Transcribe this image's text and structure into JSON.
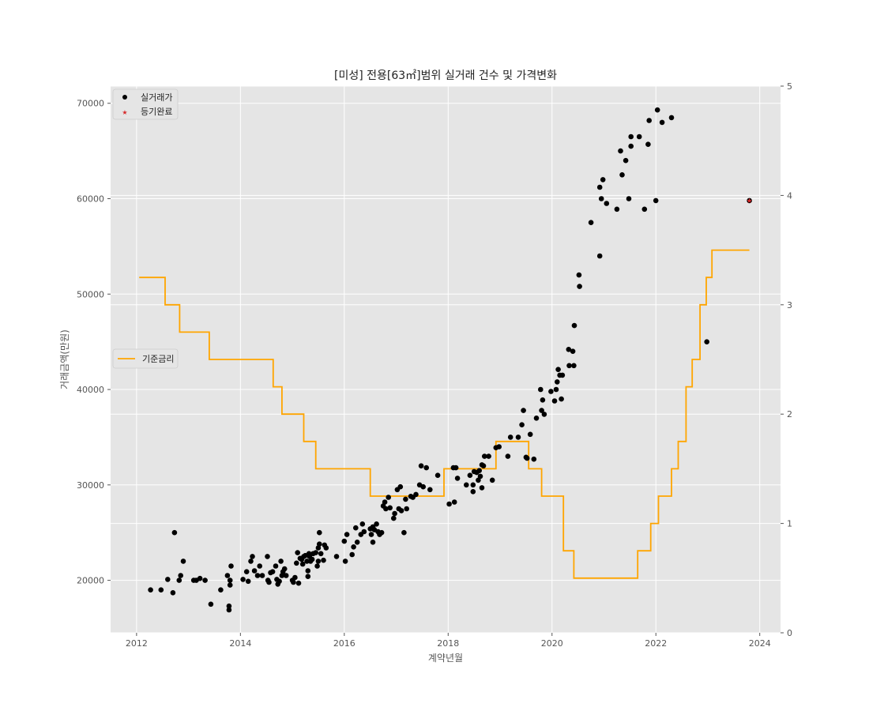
{
  "chart_data": {
    "type": "scatter",
    "title": "[미성] 전용[63㎡]범위 실거래 건수 및 가격변화",
    "xlabel": "계약년월",
    "ylabel": "거래금액(만원)",
    "xlim": [
      2011.5,
      2024.4
    ],
    "ylim": [
      14500,
      71800
    ],
    "y2lim": [
      0,
      5
    ],
    "x_ticks": [
      "2012",
      "2014",
      "2016",
      "2018",
      "2020",
      "2022",
      "2024"
    ],
    "y_ticks": [
      "20000",
      "30000",
      "40000",
      "50000",
      "60000",
      "70000"
    ],
    "y2_ticks": [
      "0",
      "1",
      "2",
      "3",
      "4",
      "5"
    ],
    "grid": true,
    "legends": {
      "scatter_position": "upper-left",
      "line_position": "center-left"
    },
    "series": [
      {
        "name": "실거래가",
        "kind": "scatter",
        "marker": "circle",
        "color": "#000000",
        "points": [
          [
            2012.27,
            19000
          ],
          [
            2012.47,
            19000
          ],
          [
            2012.6,
            20100
          ],
          [
            2012.7,
            18700
          ],
          [
            2012.73,
            25000
          ],
          [
            2012.82,
            20000
          ],
          [
            2012.85,
            20500
          ],
          [
            2012.9,
            22000
          ],
          [
            2013.1,
            20000
          ],
          [
            2013.15,
            20000
          ],
          [
            2013.22,
            20200
          ],
          [
            2013.32,
            20000
          ],
          [
            2013.43,
            17500
          ],
          [
            2013.62,
            19000
          ],
          [
            2013.75,
            20500
          ],
          [
            2013.78,
            17300
          ],
          [
            2013.78,
            16900
          ],
          [
            2013.8,
            20000
          ],
          [
            2013.8,
            19500
          ],
          [
            2013.82,
            21500
          ],
          [
            2014.05,
            20100
          ],
          [
            2014.12,
            20900
          ],
          [
            2014.15,
            19900
          ],
          [
            2014.2,
            22000
          ],
          [
            2014.23,
            22500
          ],
          [
            2014.27,
            21000
          ],
          [
            2014.33,
            20500
          ],
          [
            2014.37,
            21500
          ],
          [
            2014.42,
            20500
          ],
          [
            2014.52,
            22500
          ],
          [
            2014.53,
            20000
          ],
          [
            2014.55,
            19800
          ],
          [
            2014.58,
            20800
          ],
          [
            2014.62,
            20900
          ],
          [
            2014.68,
            21500
          ],
          [
            2014.7,
            20100
          ],
          [
            2014.72,
            19600
          ],
          [
            2014.75,
            19900
          ],
          [
            2014.78,
            22000
          ],
          [
            2014.8,
            20500
          ],
          [
            2014.82,
            20900
          ],
          [
            2014.85,
            21200
          ],
          [
            2014.88,
            20500
          ],
          [
            2015.0,
            20000
          ],
          [
            2015.02,
            19800
          ],
          [
            2015.05,
            20300
          ],
          [
            2015.08,
            21800
          ],
          [
            2015.1,
            22900
          ],
          [
            2015.12,
            19700
          ],
          [
            2015.15,
            22300
          ],
          [
            2015.18,
            22200
          ],
          [
            2015.2,
            21700
          ],
          [
            2015.22,
            22500
          ],
          [
            2015.25,
            22600
          ],
          [
            2015.28,
            22000
          ],
          [
            2015.3,
            21000
          ],
          [
            2015.3,
            20400
          ],
          [
            2015.32,
            22800
          ],
          [
            2015.33,
            22500
          ],
          [
            2015.35,
            22000
          ],
          [
            2015.38,
            22200
          ],
          [
            2015.4,
            22800
          ],
          [
            2015.45,
            22900
          ],
          [
            2015.48,
            21500
          ],
          [
            2015.5,
            22000
          ],
          [
            2015.5,
            23400
          ],
          [
            2015.52,
            23800
          ],
          [
            2015.52,
            25000
          ],
          [
            2015.55,
            22800
          ],
          [
            2015.6,
            22100
          ],
          [
            2015.62,
            23700
          ],
          [
            2015.65,
            23400
          ],
          [
            2015.85,
            22500
          ],
          [
            2016.0,
            24100
          ],
          [
            2016.02,
            22000
          ],
          [
            2016.05,
            24800
          ],
          [
            2016.15,
            22700
          ],
          [
            2016.18,
            23500
          ],
          [
            2016.22,
            25500
          ],
          [
            2016.25,
            24000
          ],
          [
            2016.32,
            24800
          ],
          [
            2016.35,
            25900
          ],
          [
            2016.38,
            25100
          ],
          [
            2016.5,
            25400
          ],
          [
            2016.52,
            24800
          ],
          [
            2016.55,
            25600
          ],
          [
            2016.55,
            24000
          ],
          [
            2016.58,
            25300
          ],
          [
            2016.62,
            25900
          ],
          [
            2016.65,
            25100
          ],
          [
            2016.68,
            24800
          ],
          [
            2016.72,
            25000
          ],
          [
            2016.75,
            27800
          ],
          [
            2016.78,
            28200
          ],
          [
            2016.8,
            27500
          ],
          [
            2016.85,
            28700
          ],
          [
            2016.88,
            27600
          ],
          [
            2016.95,
            26500
          ],
          [
            2016.97,
            27000
          ],
          [
            2017.02,
            29500
          ],
          [
            2017.05,
            27500
          ],
          [
            2017.08,
            29800
          ],
          [
            2017.1,
            27300
          ],
          [
            2017.15,
            25000
          ],
          [
            2017.18,
            28500
          ],
          [
            2017.2,
            27500
          ],
          [
            2017.28,
            28800
          ],
          [
            2017.32,
            28700
          ],
          [
            2017.38,
            29000
          ],
          [
            2017.45,
            30000
          ],
          [
            2017.48,
            32000
          ],
          [
            2017.52,
            29800
          ],
          [
            2017.58,
            31800
          ],
          [
            2017.65,
            29500
          ],
          [
            2017.8,
            31000
          ],
          [
            2018.02,
            28000
          ],
          [
            2018.1,
            31800
          ],
          [
            2018.12,
            28200
          ],
          [
            2018.15,
            31800
          ],
          [
            2018.18,
            30700
          ],
          [
            2018.35,
            30000
          ],
          [
            2018.42,
            31000
          ],
          [
            2018.48,
            29300
          ],
          [
            2018.48,
            30000
          ],
          [
            2018.5,
            31400
          ],
          [
            2018.55,
            31300
          ],
          [
            2018.58,
            30500
          ],
          [
            2018.6,
            31500
          ],
          [
            2018.62,
            30900
          ],
          [
            2018.65,
            29700
          ],
          [
            2018.65,
            32100
          ],
          [
            2018.68,
            32000
          ],
          [
            2018.7,
            33000
          ],
          [
            2018.78,
            33000
          ],
          [
            2018.85,
            30500
          ],
          [
            2018.92,
            33900
          ],
          [
            2018.98,
            34000
          ],
          [
            2019.15,
            33000
          ],
          [
            2019.2,
            35000
          ],
          [
            2019.35,
            35000
          ],
          [
            2019.42,
            36300
          ],
          [
            2019.45,
            37800
          ],
          [
            2019.5,
            32900
          ],
          [
            2019.52,
            32800
          ],
          [
            2019.58,
            35300
          ],
          [
            2019.65,
            32700
          ],
          [
            2019.7,
            37000
          ],
          [
            2019.78,
            40000
          ],
          [
            2019.8,
            37800
          ],
          [
            2019.82,
            38900
          ],
          [
            2019.85,
            37400
          ],
          [
            2019.98,
            39800
          ],
          [
            2020.05,
            38800
          ],
          [
            2020.08,
            40000
          ],
          [
            2020.1,
            40800
          ],
          [
            2020.12,
            42100
          ],
          [
            2020.15,
            41500
          ],
          [
            2020.18,
            39000
          ],
          [
            2020.2,
            41500
          ],
          [
            2020.32,
            44200
          ],
          [
            2020.33,
            42500
          ],
          [
            2020.4,
            44000
          ],
          [
            2020.42,
            42500
          ],
          [
            2020.43,
            46700
          ],
          [
            2020.52,
            52000
          ],
          [
            2020.53,
            50800
          ],
          [
            2020.75,
            57500
          ],
          [
            2020.92,
            54000
          ],
          [
            2020.92,
            61200
          ],
          [
            2020.95,
            60000
          ],
          [
            2020.98,
            62000
          ],
          [
            2021.05,
            59500
          ],
          [
            2021.25,
            58900
          ],
          [
            2021.32,
            65000
          ],
          [
            2021.35,
            62500
          ],
          [
            2021.42,
            64000
          ],
          [
            2021.48,
            60000
          ],
          [
            2021.52,
            66500
          ],
          [
            2021.52,
            65500
          ],
          [
            2021.68,
            66500
          ],
          [
            2021.78,
            58900
          ],
          [
            2021.85,
            65700
          ],
          [
            2021.87,
            68200
          ],
          [
            2022.0,
            59800
          ],
          [
            2022.03,
            69300
          ],
          [
            2022.12,
            68000
          ],
          [
            2022.3,
            68500
          ],
          [
            2022.98,
            45000
          ],
          [
            2023.8,
            59800
          ]
        ]
      },
      {
        "name": "등기완료",
        "kind": "scatter",
        "marker": "star",
        "color": "#d62728",
        "points": [
          [
            2023.8,
            59800
          ]
        ]
      },
      {
        "name": "기준금리",
        "kind": "step",
        "axis": "right",
        "color": "#ffa500",
        "points": [
          [
            2012.05,
            3.25
          ],
          [
            2012.55,
            3.25
          ],
          [
            2012.55,
            3.0
          ],
          [
            2012.83,
            3.0
          ],
          [
            2012.83,
            2.75
          ],
          [
            2013.4,
            2.75
          ],
          [
            2013.4,
            2.5
          ],
          [
            2014.63,
            2.5
          ],
          [
            2014.63,
            2.25
          ],
          [
            2014.8,
            2.25
          ],
          [
            2014.8,
            2.0
          ],
          [
            2015.22,
            2.0
          ],
          [
            2015.22,
            1.75
          ],
          [
            2015.45,
            1.75
          ],
          [
            2015.45,
            1.5
          ],
          [
            2016.5,
            1.5
          ],
          [
            2016.5,
            1.25
          ],
          [
            2017.92,
            1.25
          ],
          [
            2017.92,
            1.5
          ],
          [
            2018.92,
            1.5
          ],
          [
            2018.92,
            1.75
          ],
          [
            2019.55,
            1.75
          ],
          [
            2019.55,
            1.5
          ],
          [
            2019.8,
            1.5
          ],
          [
            2019.8,
            1.25
          ],
          [
            2020.22,
            1.25
          ],
          [
            2020.22,
            0.75
          ],
          [
            2020.42,
            0.75
          ],
          [
            2020.42,
            0.5
          ],
          [
            2021.65,
            0.5
          ],
          [
            2021.65,
            0.75
          ],
          [
            2021.9,
            0.75
          ],
          [
            2021.9,
            1.0
          ],
          [
            2022.05,
            1.0
          ],
          [
            2022.05,
            1.25
          ],
          [
            2022.3,
            1.25
          ],
          [
            2022.3,
            1.5
          ],
          [
            2022.43,
            1.5
          ],
          [
            2022.43,
            1.75
          ],
          [
            2022.58,
            1.75
          ],
          [
            2022.58,
            2.25
          ],
          [
            2022.7,
            2.25
          ],
          [
            2022.7,
            2.5
          ],
          [
            2022.85,
            2.5
          ],
          [
            2022.85,
            3.0
          ],
          [
            2022.97,
            3.0
          ],
          [
            2022.97,
            3.25
          ],
          [
            2023.08,
            3.25
          ],
          [
            2023.08,
            3.5
          ],
          [
            2023.8,
            3.5
          ]
        ]
      }
    ]
  }
}
